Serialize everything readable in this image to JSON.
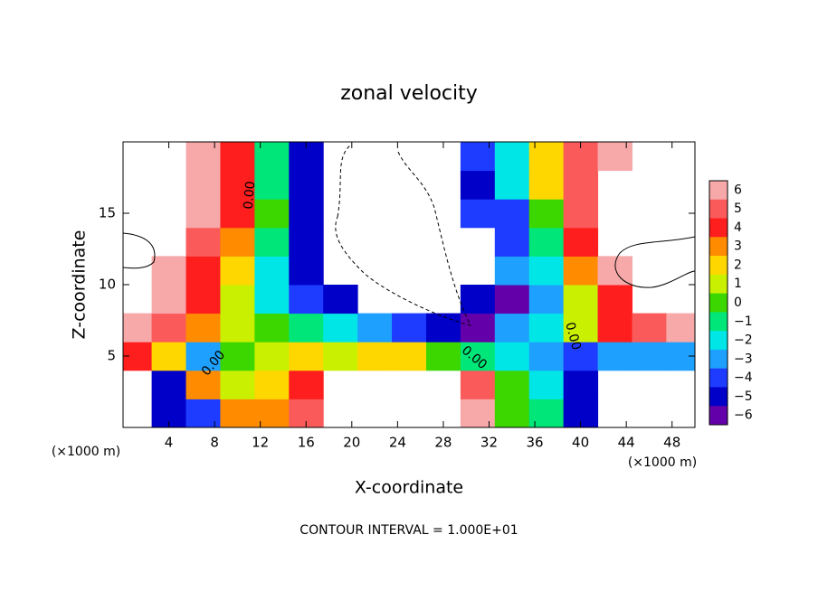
{
  "chart_data": {
    "type": "contour",
    "title": "zonal velocity",
    "x_label": "X-coordinate",
    "y_label": "Z-coordinate",
    "x_unit_label": "(×1000 m)",
    "note": "CONTOUR INTERVAL = 1.000E+01",
    "contour_label": "0.00",
    "xlim": [
      0,
      50
    ],
    "ylim": [
      0,
      20
    ],
    "xticks": [
      4,
      8,
      12,
      16,
      20,
      24,
      28,
      32,
      36,
      40,
      44,
      48
    ],
    "yticks": [
      5,
      10,
      15
    ],
    "levels": [
      6,
      5,
      4,
      3,
      2,
      1,
      0,
      -1,
      -2,
      -3,
      -4,
      -5,
      -6
    ],
    "level_labels": [
      "6",
      "5",
      "4",
      "3",
      "2",
      "1",
      "0",
      "−1",
      "−2",
      "−3",
      "−4",
      "−5",
      "−6"
    ],
    "colors": [
      "#f7a8a8",
      "#fa5a5a",
      "#ff1e1e",
      "#ff8c00",
      "#ffd700",
      "#c8f000",
      "#3cd700",
      "#00e678",
      "#00e6e6",
      "#1ea0ff",
      "#1e3cff",
      "#0000c8",
      "#6400aa"
    ],
    "x": [
      1,
      4,
      7,
      10,
      13,
      16,
      19,
      22,
      25,
      28,
      31,
      34,
      37,
      40,
      43,
      46,
      49
    ],
    "y": [
      1,
      3,
      5,
      7,
      9,
      11,
      13,
      15,
      17,
      19
    ],
    "z": [
      [
        null,
        -5,
        -4,
        3,
        3,
        5,
        null,
        null,
        null,
        null,
        6,
        0,
        -1,
        -5,
        null,
        null,
        null
      ],
      [
        null,
        -5,
        3,
        1,
        2,
        4,
        null,
        null,
        null,
        null,
        5,
        0,
        -2,
        -5,
        null,
        null,
        null
      ],
      [
        4,
        2,
        -3,
        0,
        1,
        2,
        1,
        2,
        2,
        0,
        -1,
        -2,
        -3,
        -4,
        -3,
        -3,
        -3
      ],
      [
        6,
        5,
        3,
        1,
        0,
        -1,
        -2,
        -3,
        -4,
        -5,
        -6,
        -3,
        -2,
        1,
        4,
        5,
        6
      ],
      [
        null,
        6,
        4,
        1,
        -2,
        -4,
        -5,
        null,
        null,
        null,
        -5,
        -6,
        -3,
        1,
        4,
        null,
        null
      ],
      [
        null,
        6,
        4,
        2,
        -2,
        -5,
        null,
        null,
        null,
        null,
        null,
        -3,
        -2,
        3,
        6,
        null,
        null
      ],
      [
        null,
        null,
        5,
        3,
        -1,
        -5,
        null,
        null,
        null,
        null,
        null,
        -4,
        -1,
        4,
        null,
        null,
        null
      ],
      [
        null,
        null,
        6,
        4,
        0,
        -5,
        null,
        null,
        null,
        null,
        -4,
        -4,
        0,
        5,
        null,
        null,
        null
      ],
      [
        null,
        null,
        6,
        4,
        -1,
        -5,
        null,
        null,
        null,
        null,
        -5,
        -2,
        2,
        5,
        null,
        null,
        null
      ],
      [
        null,
        null,
        6,
        4,
        -1,
        -5,
        null,
        null,
        null,
        null,
        -4,
        -2,
        2,
        5,
        6,
        null,
        null
      ]
    ]
  }
}
